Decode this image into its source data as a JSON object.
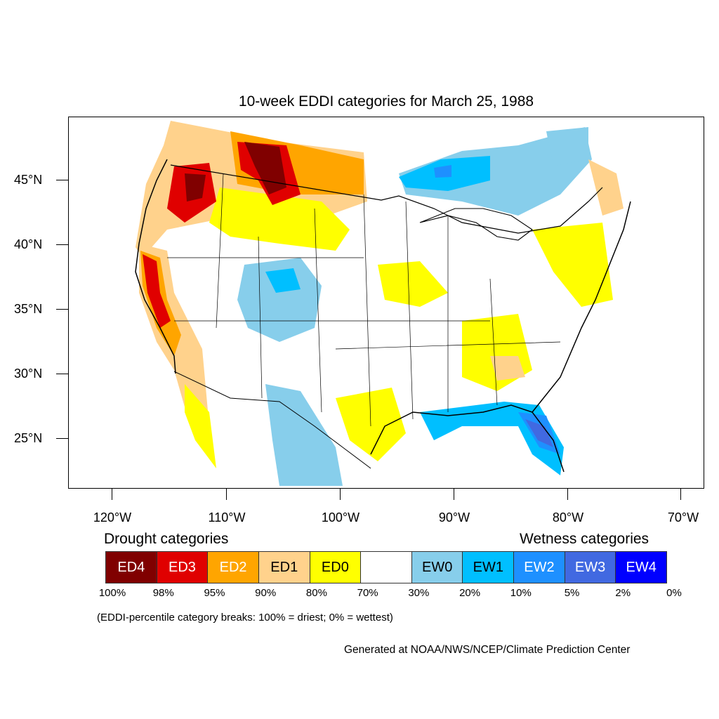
{
  "title": "10-week EDDI categories for March 25, 1988",
  "lat_labels": [
    "45°N",
    "40°N",
    "35°N",
    "30°N",
    "25°N"
  ],
  "lon_labels": [
    "120°W",
    "110°W",
    "100°W",
    "90°W",
    "80°W",
    "70°W"
  ],
  "legend": {
    "drought_heading": "Drought categories",
    "wetness_heading": "Wetness categories",
    "categories": [
      {
        "label": "ED4",
        "color": "#800000",
        "text_color": "#ffffff"
      },
      {
        "label": "ED3",
        "color": "#e00000",
        "text_color": "#ffffff"
      },
      {
        "label": "ED2",
        "color": "#ffa500",
        "text_color": "#ffffff"
      },
      {
        "label": "ED1",
        "color": "#ffd28c",
        "text_color": "#000000"
      },
      {
        "label": "ED0",
        "color": "#ffff00",
        "text_color": "#000000"
      },
      {
        "label": "",
        "color": "#ffffff",
        "text_color": "#000000"
      },
      {
        "label": "EW0",
        "color": "#87ceeb",
        "text_color": "#000000"
      },
      {
        "label": "EW1",
        "color": "#00bfff",
        "text_color": "#000000"
      },
      {
        "label": "EW2",
        "color": "#1e90ff",
        "text_color": "#ffffff"
      },
      {
        "label": "EW3",
        "color": "#4169e1",
        "text_color": "#ffffff"
      },
      {
        "label": "EW4",
        "color": "#0000ff",
        "text_color": "#ffffff"
      }
    ],
    "percentiles": [
      "100%",
      "98%",
      "95%",
      "90%",
      "80%",
      "70%",
      "30%",
      "20%",
      "10%",
      "5%",
      "2%",
      "0%"
    ]
  },
  "note": "(EDDI-percentile category breaks: 100% = driest; 0% = wettest)",
  "credit": "Generated at NOAA/NWS/NCEP/Climate Prediction Center"
}
